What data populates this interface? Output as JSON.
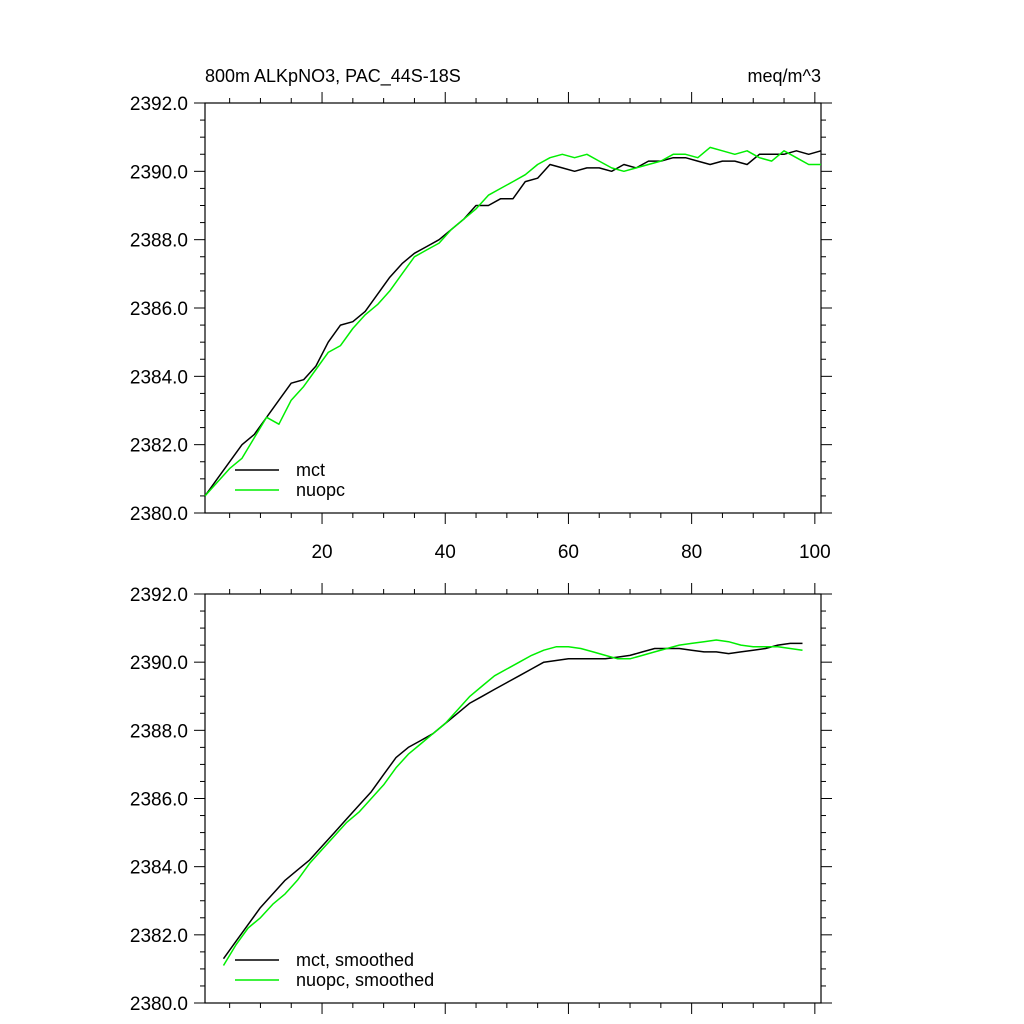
{
  "header": {
    "title_left": "800m ALKpNO3, PAC_44S-18S",
    "title_right": "meq/m^3"
  },
  "colors": {
    "mct": "#000000",
    "nuopc": "#00ee00"
  },
  "chart_data": [
    {
      "type": "line",
      "xlim": [
        1,
        101
      ],
      "ylim": [
        2380,
        2392
      ],
      "xticks": [
        20,
        40,
        60,
        80,
        100
      ],
      "xtick_labels": [
        "20",
        "40",
        "60",
        "80",
        "100"
      ],
      "yticks": [
        2380,
        2382,
        2384,
        2386,
        2388,
        2390,
        2392
      ],
      "ytick_labels": [
        "2380.0",
        "2382.0",
        "2384.0",
        "2386.0",
        "2388.0",
        "2390.0",
        "2392.0"
      ],
      "legend": {
        "position": "bottom-left",
        "entries": [
          "mct",
          "nuopc"
        ]
      },
      "series": [
        {
          "name": "mct",
          "x": [
            1,
            3,
            5,
            7,
            9,
            11,
            13,
            15,
            17,
            19,
            21,
            23,
            25,
            27,
            29,
            31,
            33,
            35,
            37,
            39,
            41,
            43,
            45,
            47,
            49,
            51,
            53,
            55,
            57,
            59,
            61,
            63,
            65,
            67,
            69,
            71,
            73,
            75,
            77,
            79,
            81,
            83,
            85,
            87,
            89,
            91,
            93,
            95,
            97,
            99,
            101
          ],
          "y": [
            2380.5,
            2381.0,
            2381.5,
            2382.0,
            2382.3,
            2382.8,
            2383.3,
            2383.8,
            2383.9,
            2384.3,
            2385.0,
            2385.5,
            2385.6,
            2385.9,
            2386.4,
            2386.9,
            2387.3,
            2387.6,
            2387.8,
            2388.0,
            2388.3,
            2388.6,
            2389.0,
            2389.0,
            2389.2,
            2389.2,
            2389.7,
            2389.8,
            2390.2,
            2390.1,
            2390.0,
            2390.1,
            2390.1,
            2390.0,
            2390.2,
            2390.1,
            2390.3,
            2390.3,
            2390.4,
            2390.4,
            2390.3,
            2390.2,
            2390.3,
            2390.3,
            2390.2,
            2390.5,
            2390.5,
            2390.5,
            2390.6,
            2390.5,
            2390.6
          ]
        },
        {
          "name": "nuopc",
          "x": [
            1,
            3,
            5,
            7,
            9,
            11,
            13,
            15,
            17,
            19,
            21,
            23,
            25,
            27,
            29,
            31,
            33,
            35,
            37,
            39,
            41,
            43,
            45,
            47,
            49,
            51,
            53,
            55,
            57,
            59,
            61,
            63,
            65,
            67,
            69,
            71,
            73,
            75,
            77,
            79,
            81,
            83,
            85,
            87,
            89,
            91,
            93,
            95,
            97,
            99,
            101
          ],
          "y": [
            2380.5,
            2380.9,
            2381.3,
            2381.6,
            2382.2,
            2382.8,
            2382.6,
            2383.3,
            2383.7,
            2384.2,
            2384.7,
            2384.9,
            2385.4,
            2385.8,
            2386.1,
            2386.5,
            2387.0,
            2387.5,
            2387.7,
            2387.9,
            2388.3,
            2388.6,
            2388.9,
            2389.3,
            2389.5,
            2389.7,
            2389.9,
            2390.2,
            2390.4,
            2390.5,
            2390.4,
            2390.5,
            2390.3,
            2390.1,
            2390.0,
            2390.1,
            2390.2,
            2390.3,
            2390.5,
            2390.5,
            2390.4,
            2390.7,
            2390.6,
            2390.5,
            2390.6,
            2390.4,
            2390.3,
            2390.6,
            2390.4,
            2390.2,
            2390.2
          ]
        }
      ]
    },
    {
      "type": "line",
      "xlim": [
        1,
        101
      ],
      "ylim": [
        2380,
        2392
      ],
      "xticks": [
        20,
        40,
        60,
        80,
        100
      ],
      "xtick_labels": [],
      "yticks": [
        2380,
        2382,
        2384,
        2386,
        2388,
        2390,
        2392
      ],
      "ytick_labels": [
        "2380.0",
        "2382.0",
        "2384.0",
        "2386.0",
        "2388.0",
        "2390.0",
        "2392.0"
      ],
      "legend": {
        "position": "bottom-left",
        "entries": [
          "mct, smoothed",
          "nuopc, smoothed"
        ]
      },
      "series": [
        {
          "name": "mct, smoothed",
          "x": [
            4,
            6,
            8,
            10,
            12,
            14,
            16,
            18,
            20,
            22,
            24,
            26,
            28,
            30,
            32,
            34,
            36,
            38,
            40,
            42,
            44,
            46,
            48,
            50,
            52,
            54,
            56,
            58,
            60,
            62,
            64,
            66,
            68,
            70,
            72,
            74,
            76,
            78,
            80,
            82,
            84,
            86,
            88,
            90,
            92,
            94,
            96,
            98
          ],
          "y": [
            2381.3,
            2381.8,
            2382.3,
            2382.8,
            2383.2,
            2383.6,
            2383.9,
            2384.2,
            2384.6,
            2385.0,
            2385.4,
            2385.8,
            2386.2,
            2386.7,
            2387.2,
            2387.5,
            2387.7,
            2387.9,
            2388.2,
            2388.5,
            2388.8,
            2389.0,
            2389.2,
            2389.4,
            2389.6,
            2389.8,
            2390.0,
            2390.05,
            2390.1,
            2390.1,
            2390.1,
            2390.1,
            2390.15,
            2390.2,
            2390.3,
            2390.4,
            2390.4,
            2390.4,
            2390.35,
            2390.3,
            2390.3,
            2390.25,
            2390.3,
            2390.35,
            2390.4,
            2390.5,
            2390.55,
            2390.55
          ]
        },
        {
          "name": "nuopc, smoothed",
          "x": [
            4,
            6,
            8,
            10,
            12,
            14,
            16,
            18,
            20,
            22,
            24,
            26,
            28,
            30,
            32,
            34,
            36,
            38,
            40,
            42,
            44,
            46,
            48,
            50,
            52,
            54,
            56,
            58,
            60,
            62,
            64,
            66,
            68,
            70,
            72,
            74,
            76,
            78,
            80,
            82,
            84,
            86,
            88,
            90,
            92,
            94,
            96,
            98
          ],
          "y": [
            2381.1,
            2381.7,
            2382.2,
            2382.5,
            2382.9,
            2383.2,
            2383.6,
            2384.1,
            2384.5,
            2384.9,
            2385.3,
            2385.6,
            2386.0,
            2386.4,
            2386.9,
            2387.3,
            2387.6,
            2387.9,
            2388.2,
            2388.6,
            2389.0,
            2389.3,
            2389.6,
            2389.8,
            2390.0,
            2390.2,
            2390.35,
            2390.45,
            2390.45,
            2390.4,
            2390.3,
            2390.2,
            2390.1,
            2390.1,
            2390.2,
            2390.3,
            2390.4,
            2390.5,
            2390.55,
            2390.6,
            2390.65,
            2390.6,
            2390.5,
            2390.45,
            2390.45,
            2390.45,
            2390.4,
            2390.35
          ]
        }
      ]
    }
  ]
}
